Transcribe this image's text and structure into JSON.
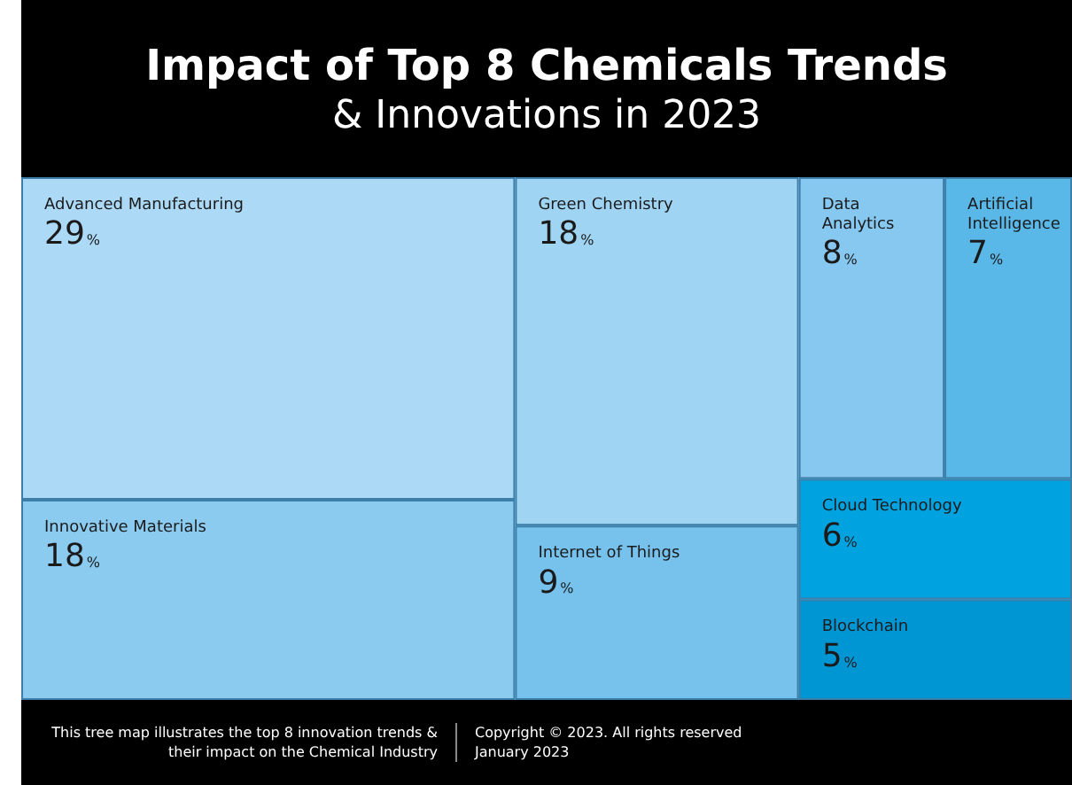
{
  "chart_data": {
    "type": "other",
    "title": "Impact of Top 8 Chemicals Trends",
    "subtitle": "& Innovations in 2023",
    "categories": [
      "Advanced Manufacturing",
      "Innovative Materials",
      "Green Chemistry",
      "Internet of Things",
      "Data Analytics",
      "Artificial Intelligence",
      "Cloud Technology",
      "Blockchain"
    ],
    "values": [
      29,
      18,
      18,
      9,
      8,
      7,
      6,
      5
    ],
    "value_labels": [
      "29%",
      "18%",
      "18%",
      "9%",
      "8%",
      "7%",
      "6%",
      "5%"
    ],
    "colors": [
      "#acd9f5",
      "#8ccbf0",
      "#a0d4f3",
      "#77c2ec",
      "#86c8ef",
      "#5ab8e8",
      "#00a3df",
      "#0096d3"
    ],
    "annotations": [
      "This tree map illustrates the top 8 innovation trends & their impact on the Chemical Industry",
      "Copyright © 2023. All rights reserved",
      "January 2023"
    ]
  }
}
